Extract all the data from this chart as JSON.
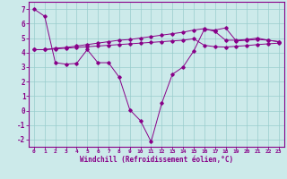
{
  "xlabel": "Windchill (Refroidissement éolien,°C)",
  "x": [
    0,
    1,
    2,
    3,
    4,
    5,
    6,
    7,
    8,
    9,
    10,
    11,
    12,
    13,
    14,
    15,
    16,
    17,
    18,
    19,
    20,
    21,
    22,
    23
  ],
  "upper_band": [
    4.2,
    4.2,
    4.3,
    4.35,
    4.45,
    4.55,
    4.65,
    4.75,
    4.85,
    4.9,
    5.0,
    5.1,
    5.2,
    5.3,
    5.4,
    5.55,
    5.65,
    5.45,
    4.85,
    4.85,
    4.9,
    5.0,
    4.85,
    4.75
  ],
  "lower_band": [
    4.2,
    4.2,
    4.25,
    4.3,
    4.35,
    4.4,
    4.45,
    4.5,
    4.55,
    4.6,
    4.65,
    4.7,
    4.75,
    4.8,
    4.85,
    4.95,
    4.5,
    4.4,
    4.38,
    4.43,
    4.48,
    4.55,
    4.6,
    4.65
  ],
  "main_curve": [
    7.0,
    6.5,
    3.3,
    3.2,
    3.25,
    4.2,
    3.3,
    3.3,
    2.3,
    0.05,
    -0.7,
    -2.15,
    0.5,
    2.5,
    3.0,
    4.1,
    5.6,
    5.55,
    5.7,
    4.8,
    4.85,
    4.9,
    4.85,
    4.75
  ],
  "ylim": [
    -2.5,
    7.5
  ],
  "yticks": [
    -2,
    -1,
    0,
    1,
    2,
    3,
    4,
    5,
    6,
    7
  ],
  "bg_color": "#cceaea",
  "line_color": "#880088",
  "grid_color": "#99cccc",
  "spine_color": "#880088"
}
